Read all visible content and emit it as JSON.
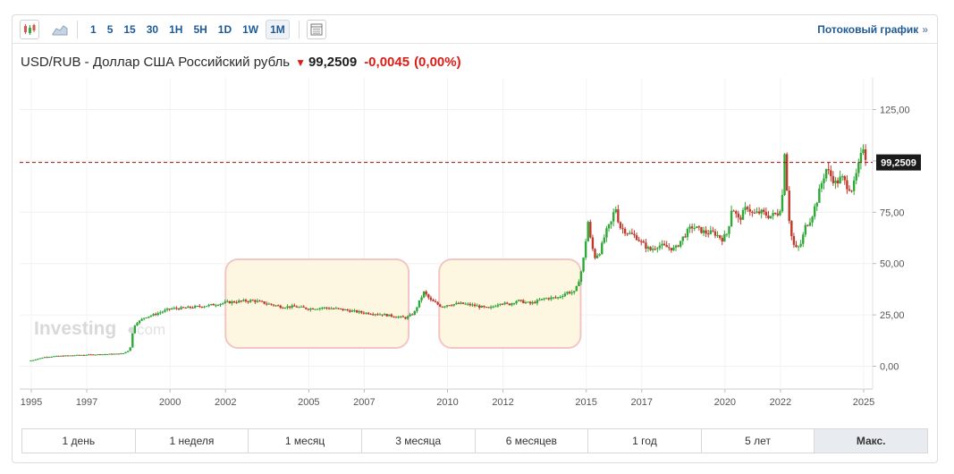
{
  "toolbar": {
    "timeframes": [
      "1",
      "5",
      "15",
      "30",
      "1H",
      "5H",
      "1D",
      "1W",
      "1M"
    ],
    "active_timeframe": "1M",
    "stream_link": "Потоковый график",
    "stream_link_chevron": "»"
  },
  "header": {
    "pair": "USD/RUB - Доллар США Российский рубль",
    "price": "99,2509",
    "change": "-0,0045",
    "change_pct": "(0,00%)"
  },
  "watermark": {
    "main": "Investing",
    "suffix": "com"
  },
  "colors": {
    "up": "#2ea836",
    "down": "#c0392b",
    "price_line": "#a10f0f",
    "price_label_bg": "#1a1a1a",
    "highlight_fill": "#fdf6e1",
    "highlight_stroke": "#f3c5c5"
  },
  "periods": [
    "1 день",
    "1 неделя",
    "1 месяц",
    "3 месяца",
    "6 месяцев",
    "1 год",
    "5 лет",
    "Макс."
  ],
  "active_period": "Макс.",
  "chart_data": {
    "type": "candlestick",
    "interval": "1M",
    "y_ticks": [
      "125,00",
      "100,00",
      "75,00",
      "50,00",
      "25,00",
      "0,00"
    ],
    "ylim": [
      -8,
      125
    ],
    "x_ticks": [
      "1995",
      "1997",
      "2000",
      "2002",
      "2005",
      "2007",
      "2010",
      "2012",
      "2015",
      "2017",
      "2020",
      "2022",
      "2025"
    ],
    "x_tick_values": [
      1995,
      1997,
      2000,
      2002,
      2005,
      2007,
      2010,
      2012,
      2015,
      2017,
      2020,
      2022,
      2025
    ],
    "xlim": [
      1994.9,
      2025.4
    ],
    "current_price_label": "99,2509",
    "current_price": 99.2509,
    "grid": true,
    "highlight_ranges": [
      [
        2002.0,
        2008.6
      ],
      [
        2009.7,
        2014.8
      ]
    ],
    "series": [
      {
        "values": [
          [
            1994.9,
            2.5
          ],
          [
            1995.5,
            4.5
          ],
          [
            1996.0,
            5.0
          ],
          [
            1996.5,
            5.3
          ],
          [
            1997.0,
            5.6
          ],
          [
            1997.5,
            5.8
          ],
          [
            1998.0,
            6.0
          ],
          [
            1998.3,
            6.2
          ],
          [
            1998.55,
            8.0
          ],
          [
            1998.65,
            16.0
          ],
          [
            1998.75,
            21.0
          ],
          [
            1998.9,
            22.0
          ],
          [
            1999.1,
            24.0
          ],
          [
            1999.4,
            25.0
          ],
          [
            1999.7,
            26.5
          ],
          [
            2000.0,
            28.0
          ],
          [
            2000.5,
            28.3
          ],
          [
            2001.0,
            29.0
          ],
          [
            2001.5,
            29.8
          ],
          [
            2002.0,
            31.0
          ],
          [
            2002.5,
            31.6
          ],
          [
            2003.0,
            32.0
          ],
          [
            2003.5,
            30.5
          ],
          [
            2004.0,
            29.0
          ],
          [
            2004.5,
            29.0
          ],
          [
            2005.0,
            28.0
          ],
          [
            2005.5,
            28.5
          ],
          [
            2006.0,
            28.0
          ],
          [
            2006.5,
            27.0
          ],
          [
            2007.0,
            26.0
          ],
          [
            2007.5,
            25.5
          ],
          [
            2008.0,
            24.5
          ],
          [
            2008.5,
            23.5
          ],
          [
            2008.8,
            26.0
          ],
          [
            2009.0,
            32.0
          ],
          [
            2009.15,
            36.0
          ],
          [
            2009.4,
            32.0
          ],
          [
            2009.8,
            29.0
          ],
          [
            2010.0,
            30.0
          ],
          [
            2010.5,
            30.5
          ],
          [
            2011.0,
            29.5
          ],
          [
            2011.5,
            28.0
          ],
          [
            2011.9,
            31.0
          ],
          [
            2012.2,
            30.0
          ],
          [
            2012.5,
            32.0
          ],
          [
            2013.0,
            30.5
          ],
          [
            2013.5,
            33.0
          ],
          [
            2014.0,
            33.5
          ],
          [
            2014.3,
            36.0
          ],
          [
            2014.6,
            36.0
          ],
          [
            2014.8,
            45.0
          ],
          [
            2014.95,
            56.0
          ],
          [
            2015.05,
            72.0
          ],
          [
            2015.15,
            62.0
          ],
          [
            2015.3,
            53.0
          ],
          [
            2015.5,
            56.0
          ],
          [
            2015.7,
            65.0
          ],
          [
            2015.9,
            70.0
          ],
          [
            2016.05,
            78.0
          ],
          [
            2016.2,
            68.0
          ],
          [
            2016.5,
            65.0
          ],
          [
            2016.8,
            63.0
          ],
          [
            2017.0,
            60.0
          ],
          [
            2017.3,
            56.5
          ],
          [
            2017.6,
            59.0
          ],
          [
            2017.9,
            58.0
          ],
          [
            2018.2,
            57.0
          ],
          [
            2018.5,
            63.0
          ],
          [
            2018.8,
            68.0
          ],
          [
            2019.0,
            67.0
          ],
          [
            2019.3,
            65.0
          ],
          [
            2019.6,
            65.0
          ],
          [
            2019.9,
            62.0
          ],
          [
            2020.1,
            65.0
          ],
          [
            2020.25,
            78.0
          ],
          [
            2020.5,
            71.0
          ],
          [
            2020.8,
            78.0
          ],
          [
            2021.0,
            74.0
          ],
          [
            2021.3,
            75.0
          ],
          [
            2021.6,
            73.0
          ],
          [
            2021.9,
            74.5
          ],
          [
            2022.05,
            79.0
          ],
          [
            2022.15,
            105.0
          ],
          [
            2022.25,
            83.0
          ],
          [
            2022.35,
            66.0
          ],
          [
            2022.5,
            58.0
          ],
          [
            2022.6,
            57.0
          ],
          [
            2022.75,
            60.0
          ],
          [
            2022.9,
            68.0
          ],
          [
            2023.1,
            72.0
          ],
          [
            2023.3,
            80.0
          ],
          [
            2023.5,
            90.0
          ],
          [
            2023.65,
            96.0
          ],
          [
            2023.8,
            93.0
          ],
          [
            2024.0,
            89.0
          ],
          [
            2024.2,
            92.0
          ],
          [
            2024.4,
            88.0
          ],
          [
            2024.6,
            86.0
          ],
          [
            2024.75,
            94.0
          ],
          [
            2024.9,
            102.0
          ],
          [
            2025.0,
            108.0
          ],
          [
            2025.1,
            99.25
          ]
        ]
      }
    ]
  }
}
